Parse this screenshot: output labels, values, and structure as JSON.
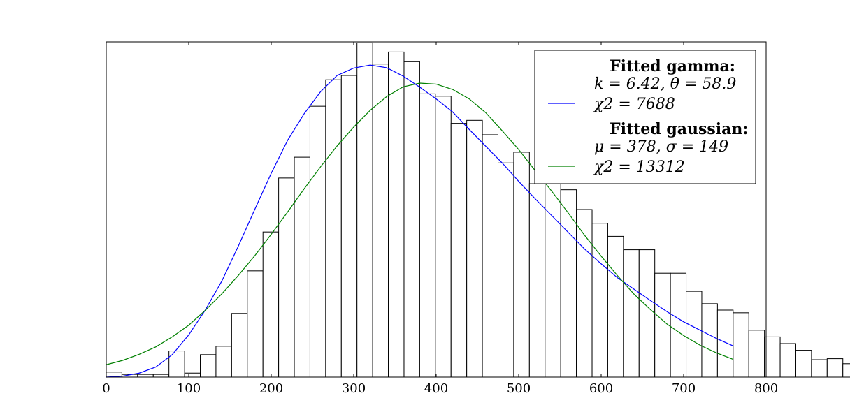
{
  "chart_data": {
    "type": "bar",
    "bin_width": 19,
    "bins_start": 0,
    "xlim": [
      0,
      800
    ],
    "ylim": [
      0,
      1.0
    ],
    "x_ticks": [
      "0",
      "100",
      "200",
      "300",
      "400",
      "500",
      "600",
      "700",
      "800"
    ],
    "x_tick_values": [
      0,
      100,
      200,
      300,
      400,
      500,
      600,
      700,
      800
    ],
    "values": [
      0.015,
      0.008,
      0.008,
      0.008,
      0.078,
      0.012,
      0.067,
      0.092,
      0.19,
      0.317,
      0.433,
      0.594,
      0.656,
      0.808,
      0.887,
      0.9,
      0.997,
      0.934,
      0.97,
      0.941,
      0.845,
      0.838,
      0.757,
      0.766,
      0.723,
      0.639,
      0.671,
      0.577,
      0.599,
      0.559,
      0.5,
      0.459,
      0.42,
      0.38,
      0.38,
      0.31,
      0.31,
      0.256,
      0.219,
      0.2,
      0.192,
      0.14,
      0.12,
      0.1,
      0.08,
      0.052,
      0.055,
      0.04
    ],
    "series": [
      {
        "name": "Fitted gamma",
        "color": "#0000ff",
        "x": [
          0,
          20,
          40,
          60,
          80,
          100,
          120,
          140,
          160,
          180,
          200,
          220,
          240,
          260,
          280,
          300,
          320,
          340,
          360,
          380,
          400,
          420,
          440,
          460,
          480,
          500,
          520,
          540,
          560,
          580,
          600,
          620,
          640,
          660,
          680,
          700,
          720,
          740,
          760
        ],
        "y": [
          0.0,
          0.003,
          0.012,
          0.03,
          0.067,
          0.126,
          0.2,
          0.286,
          0.39,
          0.5,
          0.608,
          0.707,
          0.786,
          0.852,
          0.9,
          0.922,
          0.931,
          0.923,
          0.898,
          0.865,
          0.83,
          0.791,
          0.739,
          0.689,
          0.639,
          0.584,
          0.532,
          0.482,
          0.432,
          0.382,
          0.338,
          0.296,
          0.262,
          0.228,
          0.195,
          0.165,
          0.14,
          0.115,
          0.093
        ]
      },
      {
        "name": "Fitted gaussian",
        "color": "#008000",
        "x": [
          0,
          20,
          40,
          60,
          80,
          100,
          120,
          140,
          160,
          180,
          200,
          220,
          240,
          260,
          280,
          300,
          320,
          340,
          360,
          380,
          400,
          420,
          440,
          460,
          480,
          500,
          520,
          540,
          560,
          580,
          600,
          620,
          640,
          660,
          680,
          700,
          720,
          740,
          760
        ],
        "y": [
          0.037,
          0.05,
          0.068,
          0.09,
          0.12,
          0.155,
          0.199,
          0.248,
          0.303,
          0.362,
          0.426,
          0.493,
          0.562,
          0.628,
          0.69,
          0.746,
          0.796,
          0.837,
          0.866,
          0.877,
          0.874,
          0.858,
          0.83,
          0.789,
          0.735,
          0.679,
          0.616,
          0.555,
          0.49,
          0.423,
          0.361,
          0.302,
          0.247,
          0.201,
          0.158,
          0.124,
          0.095,
          0.072,
          0.053
        ]
      }
    ],
    "legend": {
      "placement": "top-right",
      "gamma_title": "Fitted gamma:",
      "gamma_params": "k = 6.42, θ = 58.9",
      "gamma_chi": "χ2 = 7688",
      "gaussian_title": "Fitted gaussian:",
      "gaussian_params": "μ = 378, σ = 149",
      "gaussian_chi": "χ2 = 13312"
    },
    "bar_fill": "#ffffff",
    "bar_edge": "#000000",
    "title": "",
    "xlabel": "",
    "ylabel": "",
    "grid": false
  }
}
